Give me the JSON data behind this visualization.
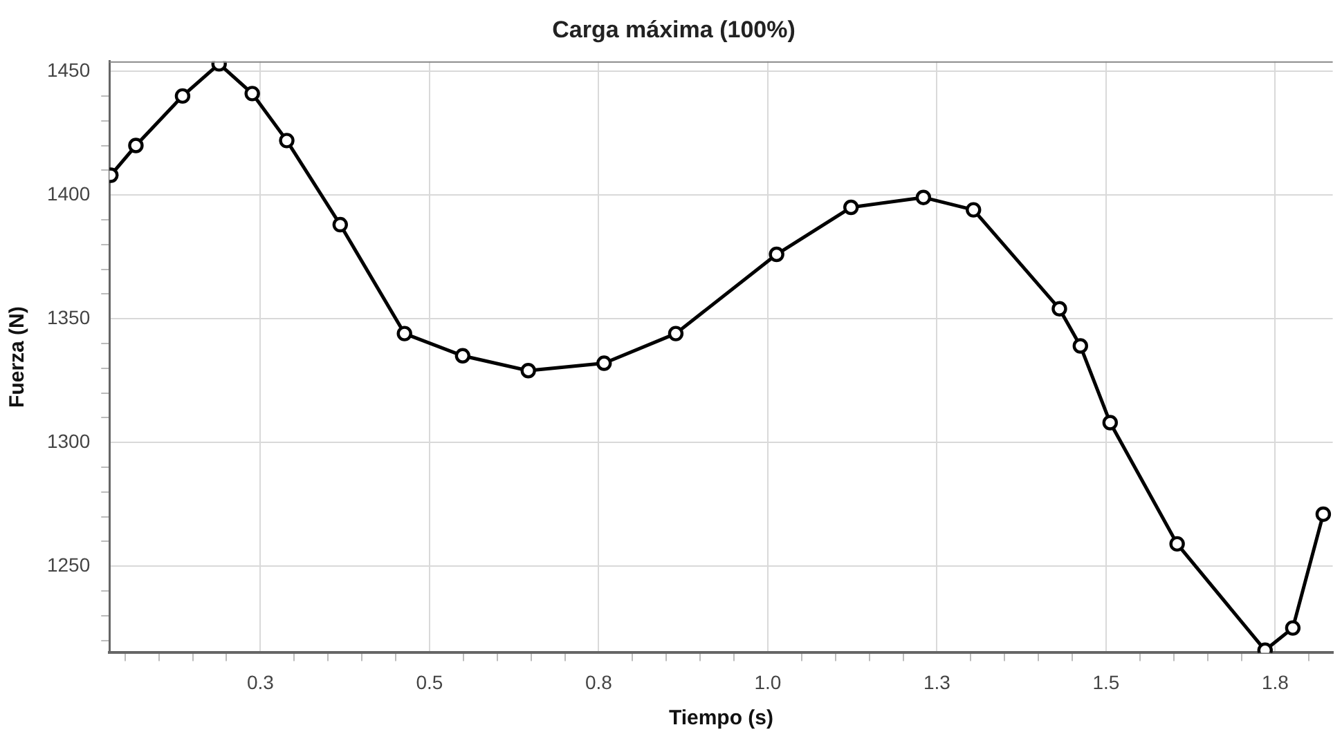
{
  "chart_data": {
    "type": "line",
    "title": "Carga máxima (100%)",
    "xlabel": "Tiempo (s)",
    "ylabel": "Fuerza (N)",
    "x": [
      0.029,
      0.066,
      0.135,
      0.189,
      0.238,
      0.289,
      0.368,
      0.463,
      0.549,
      0.646,
      0.758,
      0.864,
      1.013,
      1.123,
      1.23,
      1.304,
      1.431,
      1.462,
      1.506,
      1.605,
      1.735,
      1.776,
      1.821
    ],
    "series": [
      {
        "color": "#000000",
        "values": [
          1408,
          1420,
          1440,
          1453,
          1441,
          1422,
          1388,
          1344,
          1335,
          1329,
          1332,
          1344,
          1376,
          1395,
          1399,
          1394,
          1354,
          1339,
          1308,
          1259,
          1216,
          1225,
          1271
        ]
      }
    ],
    "xlim": [
      0.027,
      1.835
    ],
    "ylim": [
      1215,
      1454
    ],
    "xticks": [
      {
        "value": 0.05,
        "label": null
      },
      {
        "value": 0.1,
        "label": null
      },
      {
        "value": 0.15,
        "label": null
      },
      {
        "value": 0.2,
        "label": null
      },
      {
        "value": 0.25,
        "label": "0.3"
      },
      {
        "value": 0.3,
        "label": null
      },
      {
        "value": 0.35,
        "label": null
      },
      {
        "value": 0.4,
        "label": null
      },
      {
        "value": 0.45,
        "label": null
      },
      0.5,
      {
        "value": 0.55,
        "label": null
      },
      {
        "value": 0.6,
        "label": null
      },
      {
        "value": 0.65,
        "label": null
      },
      {
        "value": 0.7,
        "label": null
      },
      {
        "value": 0.75,
        "label": "0.8"
      },
      {
        "value": 0.8,
        "label": null
      },
      {
        "value": 0.85,
        "label": null
      },
      {
        "value": 0.9,
        "label": null
      },
      {
        "value": 0.95,
        "label": null
      },
      {
        "value": 1,
        "label": "1.0"
      },
      {
        "value": 1.05,
        "label": null
      },
      {
        "value": 1.1,
        "label": null
      },
      {
        "value": 1.15,
        "label": null
      },
      {
        "value": 1.2,
        "label": null
      },
      {
        "value": 1.25,
        "label": "1.3"
      },
      {
        "value": 1.3,
        "label": null
      },
      {
        "value": 1.35,
        "label": null
      },
      {
        "value": 1.4,
        "label": null
      },
      {
        "value": 1.45,
        "label": null
      },
      1.5,
      {
        "value": 1.55,
        "label": null
      },
      {
        "value": 1.6,
        "label": null
      },
      {
        "value": 1.65,
        "label": null
      },
      {
        "value": 1.7,
        "label": null
      },
      {
        "value": 1.75,
        "label": "1.8"
      },
      {
        "value": 1.8,
        "label": null
      }
    ],
    "yticks": [
      {
        "value": 1220,
        "label": null
      },
      {
        "value": 1230,
        "label": null
      },
      {
        "value": 1240,
        "label": null
      },
      1250,
      {
        "value": 1260,
        "label": null
      },
      {
        "value": 1270,
        "label": null
      },
      {
        "value": 1280,
        "label": null
      },
      {
        "value": 1290,
        "label": null
      },
      1300,
      {
        "value": 1310,
        "label": null
      },
      {
        "value": 1320,
        "label": null
      },
      {
        "value": 1330,
        "label": null
      },
      {
        "value": 1340,
        "label": null
      },
      1350,
      {
        "value": 1360,
        "label": null
      },
      {
        "value": 1370,
        "label": null
      },
      {
        "value": 1380,
        "label": null
      },
      {
        "value": 1390,
        "label": null
      },
      1400,
      {
        "value": 1410,
        "label": null
      },
      {
        "value": 1420,
        "label": null
      },
      {
        "value": 1430,
        "label": null
      },
      {
        "value": 1440,
        "label": null
      },
      1450
    ],
    "grid": true,
    "legend": false,
    "marker": "circle",
    "line_style": "solid"
  }
}
